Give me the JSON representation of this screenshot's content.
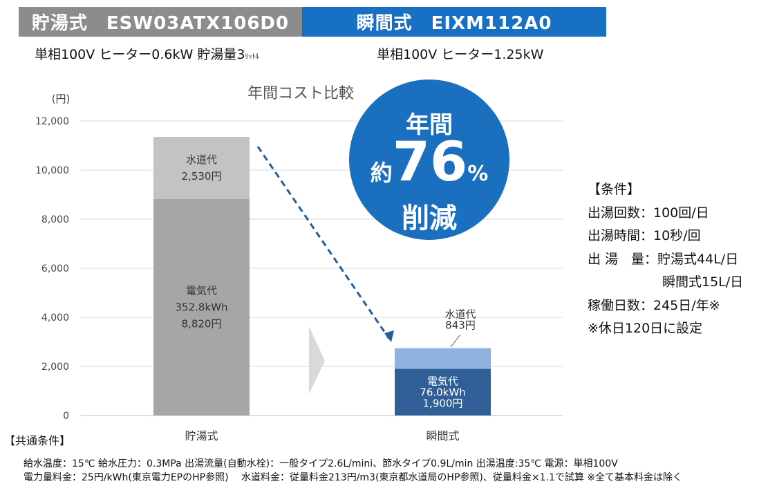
{
  "header": {
    "left_title": "貯湯式　ESW03ATX106D0",
    "right_title": "瞬間式　EIXM112A0",
    "left_color": "#8c8c8c",
    "right_color": "#1870c4"
  },
  "specs": {
    "left": "単相100V ヒーター0.6kW 貯湯量3",
    "left_unit": "ﾘｯﾄﾙ",
    "right": "単相100V ヒーター1.25kW"
  },
  "chart_data": {
    "type": "bar",
    "stacked": true,
    "title": "年間コスト比較",
    "ylabel": "(円)",
    "ylim": [
      0,
      12000
    ],
    "yticks": [
      0,
      2000,
      4000,
      6000,
      8000,
      10000,
      12000
    ],
    "ytick_labels": [
      "0",
      "2,000",
      "4,000",
      "6,000",
      "8,000",
      "10,000",
      "12,000"
    ],
    "grid": true,
    "categories": [
      "貯湯式",
      "瞬間式"
    ],
    "series": [
      {
        "values": [
          8820,
          1900
        ],
        "colors": [
          "#a6a6a6",
          "#2f5f96"
        ],
        "labels": [
          [
            "電気代",
            "352.8kWh",
            "8,820円"
          ],
          [
            "電気代",
            "76.0kWh",
            "1,900円"
          ]
        ]
      },
      {
        "values": [
          2530,
          843
        ],
        "colors": [
          "#c3c3c3",
          "#8fb2e0"
        ],
        "labels": [
          [
            "水道代",
            "2,530円"
          ],
          [
            "水道代",
            "843円"
          ]
        ]
      }
    ]
  },
  "badge": {
    "line1": "年間",
    "prefix": "約",
    "number": "76",
    "percent": "%",
    "line3": "削減",
    "color": "#1a6fbf"
  },
  "conditions": {
    "title": "【条件】",
    "rows": [
      "出湯回数：100回/日",
      "出湯時間：10秒/回",
      "出 湯　量：貯湯式44L/日",
      "瞬間式15L/日",
      "稼働日数：245日/年※",
      "※休日120日に設定"
    ]
  },
  "common": {
    "title": "【共通条件】",
    "line1": "給水温度：15℃ 給水圧力：0.3MPa 出湯流量(自動水栓)：一般タイプ2.6L/mini、節水タイプ0.9L/min 出湯温度:35℃ 電源：単相100V",
    "line2": "電力量料金：25円/kWh(東京電力EPのHP参照)　 水道料金：従量料金213円/m3(東京都水道局のHP参照)、従量料金×1.1で試算 ※全て基本料金は除く"
  }
}
